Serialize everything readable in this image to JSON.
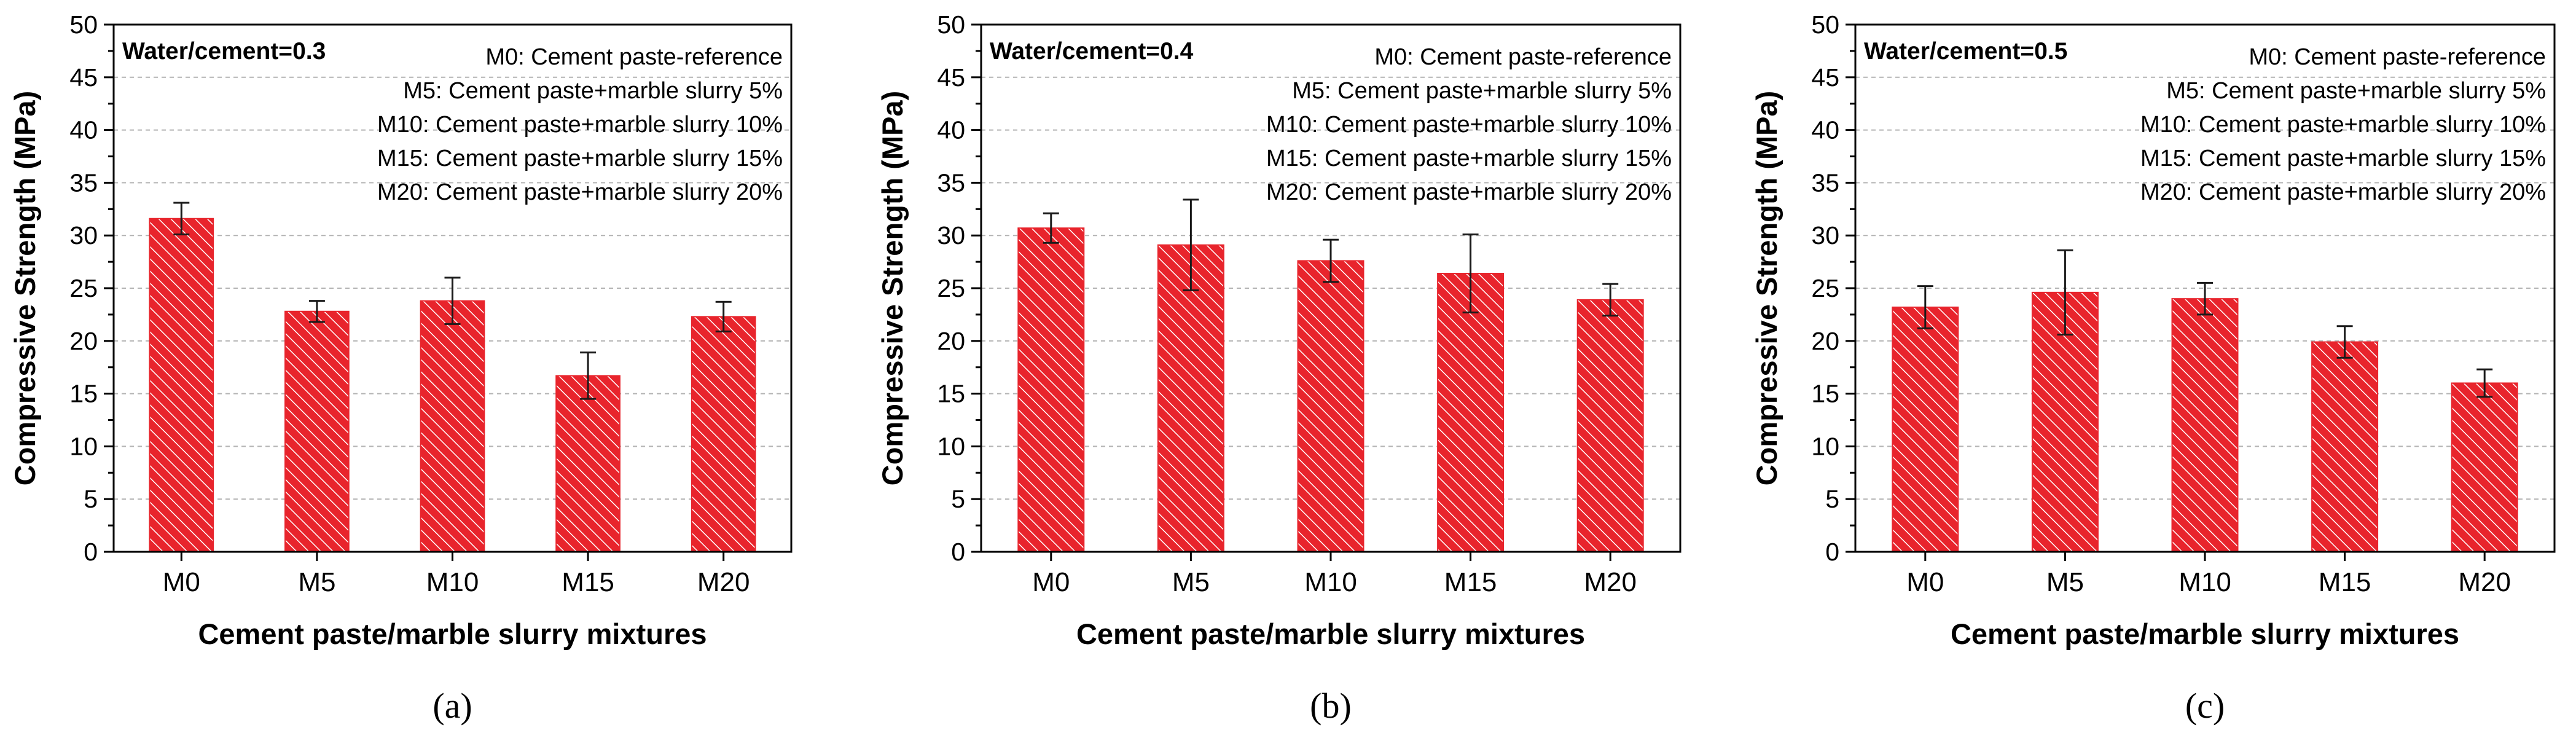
{
  "figure": {
    "bar_color": "#e8242c",
    "hatch_color": "#ffffff",
    "errorbar_color": "#1a1a1a",
    "grid_color": "#b3b3b3"
  },
  "chart_data": [
    {
      "type": "bar",
      "panel_label": "(a)",
      "annotation": "Water/cement=0.3",
      "legend_lines": [
        "M0: Cement paste-reference",
        "M5: Cement paste+marble slurry  5%",
        "M10: Cement paste+marble slurry 10%",
        "M15: Cement paste+marble slurry 15%",
        "M20: Cement paste+marble slurry 20%"
      ],
      "xlabel": "Cement paste/marble slurry mixtures",
      "ylabel": "Compressive Strength (MPa)",
      "ylim": [
        0,
        50
      ],
      "yticks": [
        0,
        5,
        10,
        15,
        20,
        25,
        30,
        35,
        40,
        45,
        50
      ],
      "grid": true,
      "categories": [
        "M0",
        "M5",
        "M10",
        "M15",
        "M20"
      ],
      "values": [
        31.6,
        22.8,
        23.8,
        16.7,
        22.3
      ],
      "errors": [
        1.5,
        1.0,
        2.2,
        2.2,
        1.4
      ]
    },
    {
      "type": "bar",
      "panel_label": "(b)",
      "annotation": "Water/cement=0.4",
      "legend_lines": [
        "M0: Cement paste-reference",
        "M5: Cement paste+marble slurry  5%",
        "M10: Cement paste+marble slurry 10%",
        "M15: Cement paste+marble slurry 15%",
        "M20: Cement paste+marble slurry 20%"
      ],
      "xlabel": "Cement paste/marble slurry mixtures",
      "ylabel": "Compressive Strength (MPa)",
      "ylim": [
        0,
        50
      ],
      "yticks": [
        0,
        5,
        10,
        15,
        20,
        25,
        30,
        35,
        40,
        45,
        50
      ],
      "grid": true,
      "categories": [
        "M0",
        "M5",
        "M10",
        "M15",
        "M20"
      ],
      "values": [
        30.7,
        29.1,
        27.6,
        26.4,
        23.9
      ],
      "errors": [
        1.4,
        4.3,
        2.0,
        3.7,
        1.5
      ]
    },
    {
      "type": "bar",
      "panel_label": "(c)",
      "annotation": "Water/cement=0.5",
      "legend_lines": [
        "M0: Cement paste-reference",
        "M5: Cement paste+marble slurry  5%",
        "M10: Cement paste+marble slurry 10%",
        "M15: Cement paste+marble slurry 15%",
        "M20: Cement paste+marble slurry 20%"
      ],
      "xlabel": "Cement paste/marble slurry mixtures",
      "ylabel": "Compressive Strength (MPa)",
      "ylim": [
        0,
        50
      ],
      "yticks": [
        0,
        5,
        10,
        15,
        20,
        25,
        30,
        35,
        40,
        45,
        50
      ],
      "grid": true,
      "categories": [
        "M0",
        "M5",
        "M10",
        "M15",
        "M20"
      ],
      "values": [
        23.2,
        24.6,
        24.0,
        19.9,
        16.0
      ],
      "errors": [
        2.0,
        4.0,
        1.5,
        1.5,
        1.3
      ]
    }
  ]
}
